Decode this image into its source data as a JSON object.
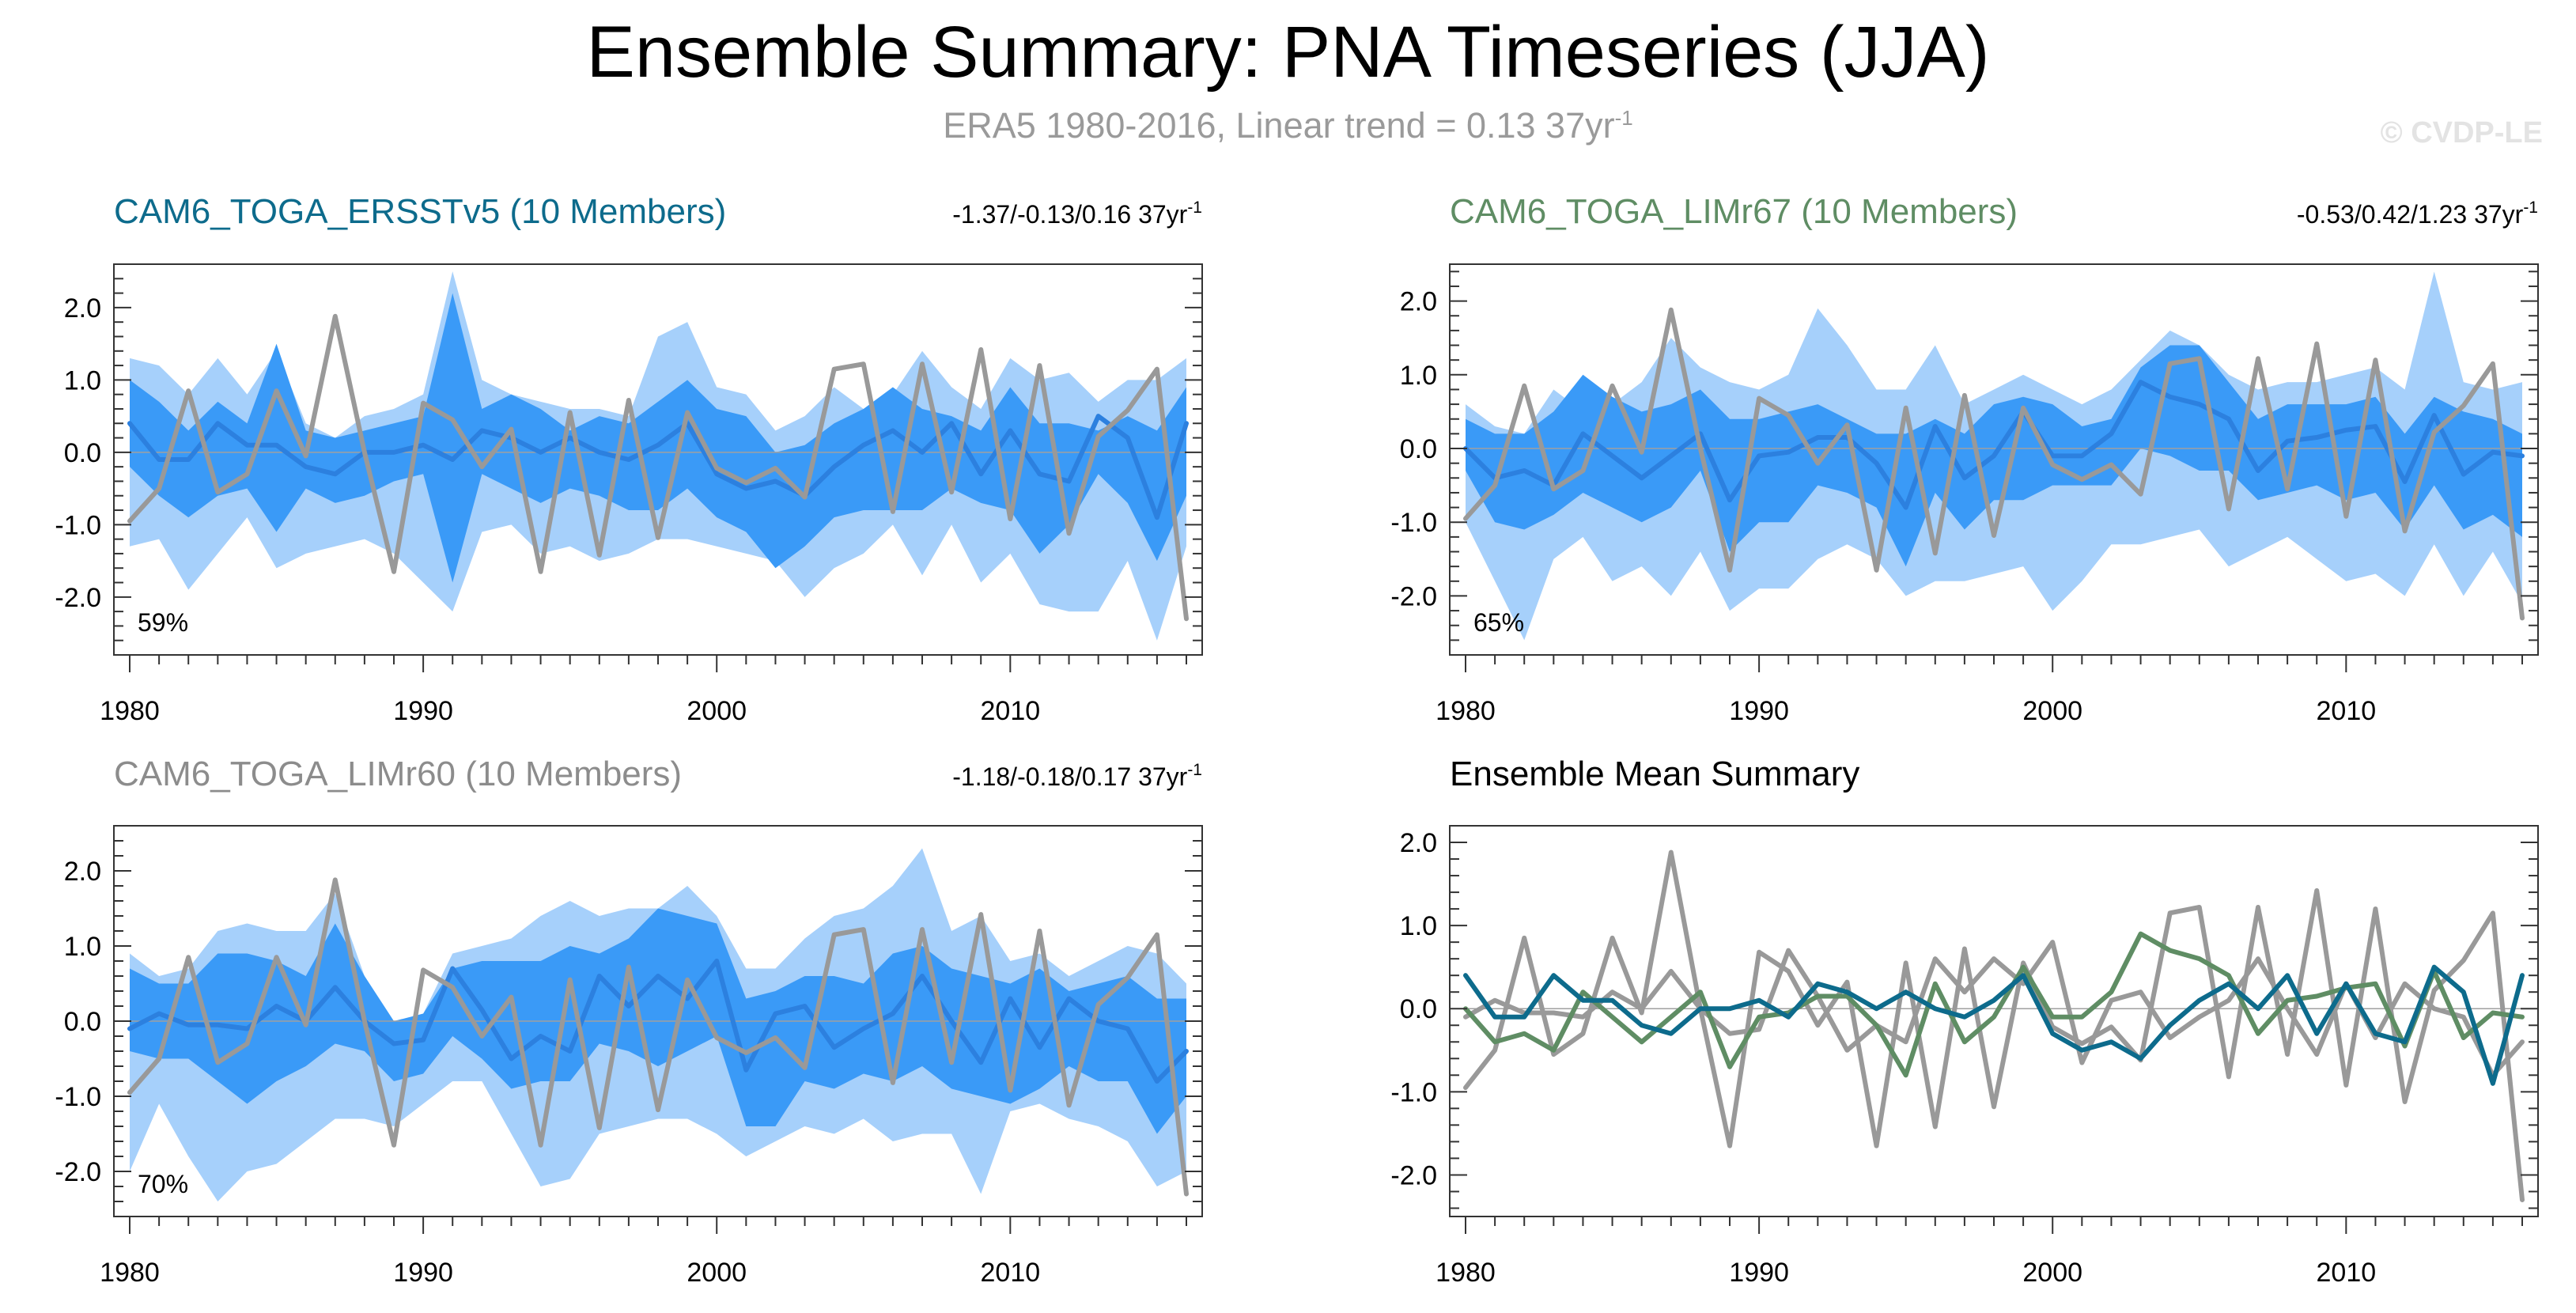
{
  "title": "Ensemble Summary: PNA Timeseries (JJA)",
  "subtitle": {
    "text": "ERA5 1980-2016, Linear trend = 0.13 37yr",
    "superscript": "-1"
  },
  "watermark": "© CVDP-LE",
  "colors": {
    "band_outer": "#a6d0fb",
    "band_inner": "#3a9af7",
    "ens_mean": "#2c80df",
    "obs": "#999999",
    "panel1_title": "#0d6b8c",
    "panel2_title": "#5f8d64",
    "panel3_title": "#8c8c8c",
    "summary_title": "#000000"
  },
  "chart_data": [
    {
      "type": "line",
      "panel": "CAM6_TOGA_ERSSTv5",
      "title": "CAM6_TOGA_ERSSTv5 (10 Members)",
      "trend_text": "-1.37/-0.13/0.16 37yr",
      "trend_superscript": "-1",
      "percent_label": "59%",
      "xlim": [
        1980,
        2016
      ],
      "ylim": [
        -2.8,
        2.6
      ],
      "yticks": [
        2.0,
        1.0,
        0.0,
        -1.0,
        -2.0
      ],
      "ytick_labels": [
        "2.0",
        "1.0",
        "0.0",
        "-1.0",
        "-2.0"
      ],
      "xticks": [
        1980,
        1990,
        2000,
        2010
      ],
      "xtick_labels": [
        "1980",
        "1990",
        "2000",
        "2010"
      ],
      "x": [
        1980,
        1981,
        1982,
        1983,
        1984,
        1985,
        1986,
        1987,
        1988,
        1989,
        1990,
        1991,
        1992,
        1993,
        1994,
        1995,
        1996,
        1997,
        1998,
        1999,
        2000,
        2001,
        2002,
        2003,
        2004,
        2005,
        2006,
        2007,
        2008,
        2009,
        2010,
        2011,
        2012,
        2013,
        2014,
        2015,
        2016
      ],
      "outer_band_upper": [
        1.3,
        1.2,
        0.8,
        1.3,
        0.8,
        1.4,
        0.4,
        0.2,
        0.5,
        0.6,
        0.8,
        2.5,
        1.0,
        0.8,
        0.7,
        0.6,
        0.6,
        0.5,
        1.6,
        1.8,
        0.9,
        0.8,
        0.3,
        0.5,
        0.9,
        0.6,
        0.8,
        1.4,
        0.9,
        0.6,
        1.3,
        1.0,
        1.1,
        0.7,
        1.0,
        1.0,
        1.3
      ],
      "inner_band_upper": [
        1.0,
        0.7,
        0.3,
        0.7,
        0.4,
        1.5,
        0.3,
        0.2,
        0.3,
        0.4,
        0.5,
        2.2,
        0.6,
        0.8,
        0.6,
        0.3,
        0.5,
        0.4,
        0.7,
        1.0,
        0.6,
        0.5,
        0.0,
        0.1,
        0.4,
        0.6,
        0.9,
        0.6,
        0.5,
        0.3,
        0.9,
        0.4,
        0.4,
        0.3,
        0.5,
        0.3,
        0.9
      ],
      "ens_mean": [
        0.4,
        -0.1,
        -0.1,
        0.4,
        0.1,
        0.1,
        -0.2,
        -0.3,
        0.0,
        0.0,
        0.1,
        -0.1,
        0.3,
        0.2,
        0.0,
        0.2,
        0.0,
        -0.1,
        0.1,
        0.4,
        -0.3,
        -0.5,
        -0.4,
        -0.6,
        -0.2,
        0.1,
        0.3,
        0.0,
        0.4,
        -0.3,
        0.3,
        -0.3,
        -0.4,
        0.5,
        0.2,
        -0.9,
        0.4
      ],
      "inner_band_lower": [
        -0.2,
        -0.6,
        -0.9,
        -0.6,
        -0.5,
        -1.1,
        -0.5,
        -0.7,
        -0.6,
        -0.4,
        -0.3,
        -1.8,
        -0.3,
        -0.5,
        -0.7,
        -0.5,
        -0.6,
        -0.8,
        -0.8,
        -0.5,
        -0.9,
        -1.1,
        -1.6,
        -1.3,
        -0.9,
        -0.8,
        -0.8,
        -0.8,
        -0.5,
        -0.7,
        -0.8,
        -1.4,
        -1.0,
        -0.3,
        -0.7,
        -1.5,
        -0.6
      ],
      "outer_band_lower": [
        -1.3,
        -1.2,
        -1.9,
        -1.4,
        -0.9,
        -1.6,
        -1.4,
        -1.3,
        -1.2,
        -1.4,
        -1.8,
        -2.2,
        -1.1,
        -1.0,
        -1.4,
        -1.3,
        -1.5,
        -1.4,
        -1.2,
        -1.2,
        -1.3,
        -1.4,
        -1.5,
        -2.0,
        -1.6,
        -1.4,
        -1.0,
        -1.7,
        -1.0,
        -1.8,
        -1.4,
        -2.1,
        -2.2,
        -2.2,
        -1.5,
        -2.6,
        -1.3
      ],
      "obs": [
        -0.95,
        -0.5,
        0.85,
        -0.55,
        -0.3,
        0.85,
        -0.05,
        1.88,
        0.0,
        -1.65,
        0.68,
        0.45,
        -0.2,
        0.32,
        -1.65,
        0.55,
        -1.42,
        0.72,
        -1.18,
        0.55,
        -0.22,
        -0.42,
        -0.22,
        -0.62,
        1.15,
        1.22,
        -0.82,
        1.22,
        -0.55,
        1.42,
        -0.92,
        1.2,
        -1.12,
        0.22,
        0.58,
        1.15,
        -2.3
      ]
    },
    {
      "type": "line",
      "panel": "CAM6_TOGA_LIMr67",
      "title": "CAM6_TOGA_LIMr67 (10 Members)",
      "trend_text": "-0.53/0.42/1.23 37yr",
      "trend_superscript": "-1",
      "percent_label": "65%",
      "xlim": [
        1980,
        2016
      ],
      "ylim": [
        -2.8,
        2.5
      ],
      "yticks": [
        2.0,
        1.0,
        0.0,
        -1.0,
        -2.0
      ],
      "ytick_labels": [
        "2.0",
        "1.0",
        "0.0",
        "-1.0",
        "-2.0"
      ],
      "xticks": [
        1980,
        1990,
        2000,
        2010
      ],
      "xtick_labels": [
        "1980",
        "1990",
        "2000",
        "2010"
      ],
      "x": [
        1980,
        1981,
        1982,
        1983,
        1984,
        1985,
        1986,
        1987,
        1988,
        1989,
        1990,
        1991,
        1992,
        1993,
        1994,
        1995,
        1996,
        1997,
        1998,
        1999,
        2000,
        2001,
        2002,
        2003,
        2004,
        2005,
        2006,
        2007,
        2008,
        2009,
        2010,
        2011,
        2012,
        2013,
        2014,
        2015,
        2016
      ],
      "outer_band_upper": [
        0.6,
        0.3,
        0.2,
        0.8,
        0.5,
        0.6,
        0.9,
        1.5,
        1.1,
        0.9,
        0.8,
        1.0,
        1.9,
        1.4,
        0.8,
        0.8,
        1.4,
        0.6,
        0.8,
        1.0,
        0.8,
        0.6,
        0.8,
        1.2,
        1.6,
        1.4,
        1.0,
        0.8,
        0.9,
        0.9,
        1.0,
        1.1,
        0.8,
        2.4,
        0.9,
        0.8,
        0.9
      ],
      "inner_band_upper": [
        0.4,
        0.2,
        0.2,
        0.5,
        1.0,
        0.7,
        0.5,
        0.6,
        0.8,
        0.4,
        0.4,
        0.5,
        0.6,
        0.4,
        0.2,
        0.2,
        0.4,
        0.2,
        0.6,
        0.7,
        0.6,
        0.3,
        0.4,
        1.1,
        1.4,
        1.4,
        0.9,
        0.4,
        0.6,
        0.6,
        0.6,
        0.7,
        0.2,
        0.7,
        0.5,
        0.4,
        0.2
      ],
      "ens_mean": [
        0.0,
        -0.4,
        -0.3,
        -0.5,
        0.2,
        -0.1,
        -0.4,
        -0.1,
        0.2,
        -0.7,
        -0.1,
        -0.05,
        0.15,
        0.15,
        -0.2,
        -0.8,
        0.3,
        -0.4,
        -0.1,
        0.5,
        -0.1,
        -0.1,
        0.2,
        0.9,
        0.7,
        0.6,
        0.4,
        -0.3,
        0.1,
        0.15,
        0.25,
        0.3,
        -0.45,
        0.45,
        -0.35,
        -0.05,
        -0.1
      ],
      "inner_band_lower": [
        -0.3,
        -1.0,
        -1.1,
        -0.9,
        -0.6,
        -0.8,
        -1.0,
        -0.8,
        -0.3,
        -1.4,
        -1.0,
        -1.0,
        -0.5,
        -0.6,
        -0.8,
        -1.6,
        -0.6,
        -1.1,
        -0.7,
        -0.7,
        -0.5,
        -0.5,
        -0.5,
        0.0,
        -0.1,
        -0.3,
        -0.3,
        -0.7,
        -0.6,
        -0.5,
        -0.7,
        -0.6,
        -1.1,
        -0.5,
        -1.1,
        -0.9,
        -1.2
      ],
      "outer_band_lower": [
        -1.0,
        -1.8,
        -2.6,
        -1.5,
        -1.2,
        -1.8,
        -1.6,
        -2.0,
        -1.4,
        -2.2,
        -1.9,
        -1.9,
        -1.5,
        -1.3,
        -1.5,
        -2.0,
        -1.8,
        -1.8,
        -1.7,
        -1.6,
        -2.2,
        -1.8,
        -1.3,
        -1.3,
        -1.2,
        -1.1,
        -1.6,
        -1.4,
        -1.2,
        -1.5,
        -1.8,
        -1.7,
        -2.0,
        -1.3,
        -2.0,
        -1.4,
        -2.1
      ],
      "obs": [
        -0.95,
        -0.5,
        0.85,
        -0.55,
        -0.3,
        0.85,
        -0.05,
        1.88,
        0.0,
        -1.65,
        0.68,
        0.45,
        -0.2,
        0.32,
        -1.65,
        0.55,
        -1.42,
        0.72,
        -1.18,
        0.55,
        -0.22,
        -0.42,
        -0.22,
        -0.62,
        1.15,
        1.22,
        -0.82,
        1.22,
        -0.55,
        1.42,
        -0.92,
        1.2,
        -1.12,
        0.22,
        0.58,
        1.15,
        -2.3
      ]
    },
    {
      "type": "line",
      "panel": "CAM6_TOGA_LIMr60",
      "title": "CAM6_TOGA_LIMr60 (10 Members)",
      "trend_text": "-1.18/-0.18/0.17 37yr",
      "trend_superscript": "-1",
      "percent_label": "70%",
      "xlim": [
        1980,
        2016
      ],
      "ylim": [
        -2.6,
        2.6
      ],
      "yticks": [
        2.0,
        1.0,
        0.0,
        -1.0,
        -2.0
      ],
      "ytick_labels": [
        "2.0",
        "1.0",
        "0.0",
        "-1.0",
        "-2.0"
      ],
      "xticks": [
        1980,
        1990,
        2000,
        2010
      ],
      "xtick_labels": [
        "1980",
        "1990",
        "2000",
        "2010"
      ],
      "x": [
        1980,
        1981,
        1982,
        1983,
        1984,
        1985,
        1986,
        1987,
        1988,
        1989,
        1990,
        1991,
        1992,
        1993,
        1994,
        1995,
        1996,
        1997,
        1998,
        1999,
        2000,
        2001,
        2002,
        2003,
        2004,
        2005,
        2006,
        2007,
        2008,
        2009,
        2010,
        2011,
        2012,
        2013,
        2014,
        2015,
        2016
      ],
      "outer_band_upper": [
        0.9,
        0.6,
        0.7,
        1.2,
        1.3,
        1.2,
        1.2,
        1.7,
        0.6,
        0.0,
        0.1,
        0.9,
        1.0,
        1.1,
        1.4,
        1.6,
        1.4,
        1.5,
        1.5,
        1.8,
        1.4,
        0.7,
        0.7,
        1.1,
        1.4,
        1.5,
        1.8,
        2.3,
        1.2,
        1.4,
        0.8,
        0.9,
        0.6,
        0.8,
        1.0,
        0.9,
        0.5
      ],
      "inner_band_upper": [
        0.7,
        0.5,
        0.5,
        0.9,
        0.9,
        0.8,
        0.6,
        1.3,
        0.6,
        0.0,
        0.1,
        0.7,
        0.8,
        0.8,
        0.8,
        1.0,
        0.9,
        1.1,
        1.5,
        1.4,
        1.3,
        0.3,
        0.4,
        0.6,
        0.6,
        0.5,
        0.9,
        1.0,
        0.7,
        0.6,
        0.5,
        0.7,
        0.4,
        0.5,
        0.6,
        0.3,
        0.3
      ],
      "ens_mean": [
        -0.1,
        0.1,
        -0.05,
        -0.05,
        -0.1,
        0.2,
        0.0,
        0.45,
        0.0,
        -0.3,
        -0.25,
        0.7,
        0.15,
        -0.5,
        -0.2,
        -0.4,
        0.6,
        0.2,
        0.6,
        0.3,
        0.8,
        -0.65,
        0.1,
        0.2,
        -0.35,
        -0.1,
        0.1,
        0.6,
        0.0,
        -0.55,
        0.3,
        -0.35,
        0.3,
        0.0,
        -0.1,
        -0.8,
        -0.4
      ],
      "inner_band_lower": [
        -0.4,
        -0.5,
        -0.5,
        -0.8,
        -1.1,
        -0.8,
        -0.6,
        -0.3,
        -0.4,
        -0.8,
        -0.7,
        -0.2,
        -0.5,
        -0.9,
        -0.8,
        -0.8,
        -0.3,
        -0.4,
        -0.6,
        -0.4,
        -0.2,
        -1.4,
        -1.4,
        -0.8,
        -0.9,
        -0.7,
        -0.8,
        -0.6,
        -0.9,
        -1.0,
        -1.1,
        -0.9,
        -0.6,
        -0.8,
        -0.8,
        -1.5,
        -1.0
      ],
      "outer_band_lower": [
        -2.0,
        -1.1,
        -1.8,
        -2.4,
        -2.0,
        -1.9,
        -1.6,
        -1.3,
        -1.3,
        -1.4,
        -1.1,
        -0.8,
        -0.8,
        -1.5,
        -2.2,
        -2.1,
        -1.5,
        -1.4,
        -1.3,
        -1.3,
        -1.5,
        -1.8,
        -1.6,
        -1.4,
        -1.5,
        -1.3,
        -1.6,
        -1.5,
        -1.5,
        -2.3,
        -1.2,
        -1.1,
        -1.3,
        -1.4,
        -1.6,
        -2.2,
        -2.0
      ],
      "obs": [
        -0.95,
        -0.5,
        0.85,
        -0.55,
        -0.3,
        0.85,
        -0.05,
        1.88,
        0.0,
        -1.65,
        0.68,
        0.45,
        -0.2,
        0.32,
        -1.65,
        0.55,
        -1.42,
        0.72,
        -1.18,
        0.55,
        -0.22,
        -0.42,
        -0.22,
        -0.62,
        1.15,
        1.22,
        -0.82,
        1.22,
        -0.55,
        1.42,
        -0.92,
        1.2,
        -1.12,
        0.22,
        0.58,
        1.15,
        -2.3
      ]
    },
    {
      "type": "line",
      "panel": "Ensemble Mean Summary",
      "title": "Ensemble Mean Summary",
      "xlim": [
        1980,
        2016
      ],
      "ylim": [
        -2.5,
        2.2
      ],
      "yticks": [
        2.0,
        1.0,
        0.0,
        -1.0,
        -2.0
      ],
      "ytick_labels": [
        "2.0",
        "1.0",
        "0.0",
        "-1.0",
        "-2.0"
      ],
      "xticks": [
        1980,
        1990,
        2000,
        2010
      ],
      "xtick_labels": [
        "1980",
        "1990",
        "2000",
        "2010"
      ],
      "x": [
        1980,
        1981,
        1982,
        1983,
        1984,
        1985,
        1986,
        1987,
        1988,
        1989,
        1990,
        1991,
        1992,
        1993,
        1994,
        1995,
        1996,
        1997,
        1998,
        1999,
        2000,
        2001,
        2002,
        2003,
        2004,
        2005,
        2006,
        2007,
        2008,
        2009,
        2010,
        2011,
        2012,
        2013,
        2014,
        2015,
        2016
      ],
      "series": [
        {
          "name": "ERA5",
          "color": "#999999",
          "values": [
            -0.95,
            -0.5,
            0.85,
            -0.55,
            -0.3,
            0.85,
            -0.05,
            1.88,
            0.0,
            -1.65,
            0.68,
            0.45,
            -0.2,
            0.32,
            -1.65,
            0.55,
            -1.42,
            0.72,
            -1.18,
            0.55,
            -0.22,
            -0.42,
            -0.22,
            -0.62,
            1.15,
            1.22,
            -0.82,
            1.22,
            -0.55,
            1.42,
            -0.92,
            1.2,
            -1.12,
            0.22,
            0.58,
            1.15,
            -2.3
          ]
        },
        {
          "name": "CAM6_TOGA_LIMr60",
          "color": "#999999",
          "values": [
            -0.1,
            0.1,
            -0.05,
            -0.05,
            -0.1,
            0.2,
            0.0,
            0.45,
            0.0,
            -0.3,
            -0.25,
            0.7,
            0.15,
            -0.5,
            -0.2,
            -0.4,
            0.6,
            0.2,
            0.6,
            0.3,
            0.8,
            -0.65,
            0.1,
            0.2,
            -0.35,
            -0.1,
            0.1,
            0.6,
            0.0,
            -0.55,
            0.3,
            -0.35,
            0.3,
            0.0,
            -0.1,
            -0.8,
            -0.4
          ]
        },
        {
          "name": "CAM6_TOGA_LIMr67",
          "color": "#5f8d64",
          "values": [
            0.0,
            -0.4,
            -0.3,
            -0.5,
            0.2,
            -0.1,
            -0.4,
            -0.1,
            0.2,
            -0.7,
            -0.1,
            -0.05,
            0.15,
            0.15,
            -0.2,
            -0.8,
            0.3,
            -0.4,
            -0.1,
            0.5,
            -0.1,
            -0.1,
            0.2,
            0.9,
            0.7,
            0.6,
            0.4,
            -0.3,
            0.1,
            0.15,
            0.25,
            0.3,
            -0.45,
            0.45,
            -0.35,
            -0.05,
            -0.1
          ]
        },
        {
          "name": "CAM6_TOGA_ERSSTv5",
          "color": "#0d6b8c",
          "values": [
            0.4,
            -0.1,
            -0.1,
            0.4,
            0.1,
            0.1,
            -0.2,
            -0.3,
            0.0,
            0.0,
            0.1,
            -0.1,
            0.3,
            0.2,
            0.0,
            0.2,
            0.0,
            -0.1,
            0.1,
            0.4,
            -0.3,
            -0.5,
            -0.4,
            -0.6,
            -0.2,
            0.1,
            0.3,
            0.0,
            0.4,
            -0.3,
            0.3,
            -0.3,
            -0.4,
            0.5,
            0.2,
            -0.9,
            0.4
          ]
        }
      ]
    }
  ]
}
